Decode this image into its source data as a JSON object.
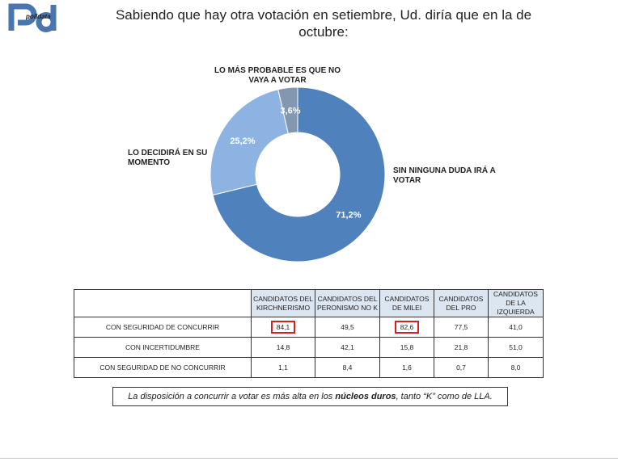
{
  "logo_text": "polldata",
  "title": "Sabiendo que hay otra votación en setiembre, Ud. diría que en la de octubre:",
  "chart_data": {
    "type": "pie",
    "donut": true,
    "title": "Sabiendo que hay otra votación en setiembre, Ud. diría que en la de octubre:",
    "slices": [
      {
        "label": "SIN NINGUNA DUDA IRÁ A VOTAR",
        "value": 71.2,
        "value_label": "71,2%",
        "color": "#4f81bd"
      },
      {
        "label": "LO DECIDIRÁ EN SU MOMENTO",
        "value": 25.2,
        "value_label": "25,2%",
        "color": "#8db3e2"
      },
      {
        "label": "LO MÁS PROBABLE ES QUE NO VAYA A VOTAR",
        "value": 3.6,
        "value_label": "3,6%",
        "color": "#8497b0"
      }
    ]
  },
  "table": {
    "headers": [
      "",
      "CANDIDATOS DEL KIRCHNERISMO",
      "CANDIDATOS DEL PERONISMO NO K",
      "CANDIDATOS DE MILEI",
      "CANDIDATOS DEL PRO",
      "CANDIDATOS DE LA IZQUIERDA"
    ],
    "rows": [
      [
        "CON SEGURIDAD DE  CONCURRIR",
        "84,1",
        "49,5",
        "82,6",
        "77,5",
        "41,0"
      ],
      [
        "CON INCERTIDUMBRE",
        "14,8",
        "42,1",
        "15,8",
        "21,8",
        "51,0"
      ],
      [
        "CON SEGURIDAD DE NO CONCURRIR",
        "1,1",
        "8,4",
        "1,6",
        "0,7",
        "8,0"
      ]
    ],
    "highlighted": [
      "84,1",
      "82,6"
    ],
    "highlight_color": "#d42020"
  },
  "note": {
    "pre": "La disposición a concurrir a votar es más alta en los ",
    "bold": "núcleos duros",
    "post": ", tanto “K” como de LLA."
  }
}
